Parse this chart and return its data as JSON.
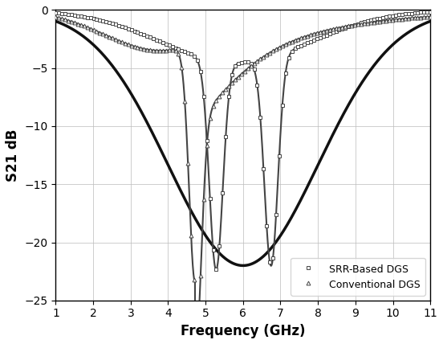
{
  "xlabel": "Frequency (GHz)",
  "ylabel": "S21 dB",
  "xlim": [
    1,
    11
  ],
  "ylim": [
    -25,
    0
  ],
  "xticks": [
    1,
    2,
    3,
    4,
    5,
    6,
    7,
    8,
    9,
    10,
    11
  ],
  "yticks": [
    0,
    -5,
    -10,
    -15,
    -20,
    -25
  ],
  "legend_labels": [
    "SRR-Based DGS",
    "Conventional DGS"
  ],
  "legend_loc": "lower right",
  "figsize": [
    5.52,
    4.28
  ],
  "dpi": 100,
  "line_color": "#444444",
  "smooth_color": "#111111",
  "marker_srr": "s",
  "marker_conv": "^",
  "markersize": 3.5,
  "linewidth": 1.5,
  "smooth_linewidth": 2.5
}
